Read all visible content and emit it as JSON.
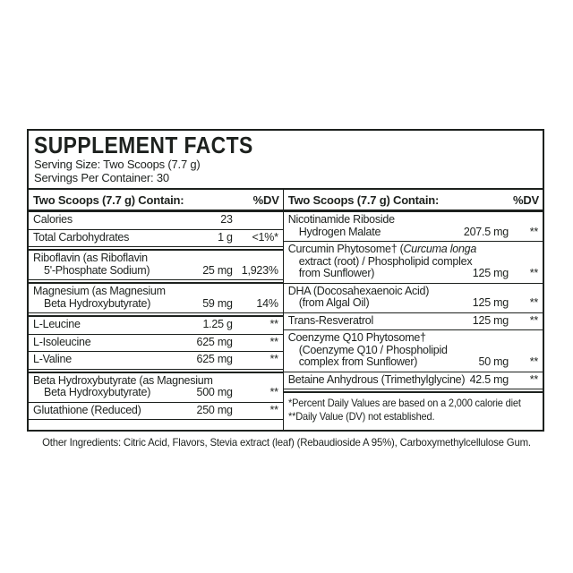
{
  "page": {
    "other_ingredients": "Other Ingredients: Citric Acid, Flavors, Stevia extract (leaf) (Rebaudioside A 95%), Carboxymethylcellulose Gum."
  },
  "panel": {
    "title": "SUPPLEMENT FACTS",
    "serving_size": "Serving Size: Two Scoops (7.7 g)",
    "servings_per_container": "Servings Per Container: 30",
    "text_color": "#1d211e",
    "columns": [
      {
        "header": "Two Scoops (7.7 g) Contain:",
        "dv_header": "%DV",
        "rows": [
          {
            "name_lines": [
              "Calories"
            ],
            "amount": "23",
            "dv": "",
            "rule": "thin"
          },
          {
            "name_lines": [
              "Total Carbohydrates"
            ],
            "amount": "1 g",
            "dv": "<1%*",
            "rule": "double"
          },
          {
            "name_lines": [
              "Riboflavin (as Riboflavin",
              "5'-Phosphate Sodium)"
            ],
            "amount": "25 mg",
            "dv": "1,923%",
            "rule": "double"
          },
          {
            "name_lines": [
              "Magnesium (as Magnesium",
              "Beta Hydroxybutyrate)"
            ],
            "amount": "59 mg",
            "dv": "14%",
            "rule": "double"
          },
          {
            "name_lines": [
              "L-Leucine"
            ],
            "amount": "1.25 g",
            "dv": "**",
            "rule": "thin"
          },
          {
            "name_lines": [
              "L-Isoleucine"
            ],
            "amount": "625 mg",
            "dv": "**",
            "rule": "thin"
          },
          {
            "name_lines": [
              "L-Valine"
            ],
            "amount": "625 mg",
            "dv": "**",
            "rule": "double"
          },
          {
            "name_lines": [
              "Beta Hydroxybutyrate (as Magnesium",
              "Beta Hydroxybutyrate)"
            ],
            "amount": "500 mg",
            "dv": "**",
            "rule": "thin"
          },
          {
            "name_lines": [
              "Glutathione (Reduced)"
            ],
            "amount": "250 mg",
            "dv": "**",
            "rule": "thin"
          }
        ]
      },
      {
        "header": "Two Scoops (7.7 g) Contain:",
        "dv_header": "%DV",
        "rows": [
          {
            "name_lines": [
              "Nicotinamide Riboside",
              "Hydrogen Malate"
            ],
            "amount": "207.5 mg",
            "dv": "**",
            "rule": "thin"
          },
          {
            "name_lines": [
              [
                {
                  "text": "Curcumin Phytosome† ("
                },
                {
                  "text": "Curcuma longa",
                  "italic": true
                }
              ],
              "extract (root) / Phospholipid complex",
              "from Sunflower)"
            ],
            "amount": "125 mg",
            "dv": "**",
            "rule": "thin"
          },
          {
            "name_lines": [
              "DHA (Docosahexaenoic Acid)",
              "(from Algal Oil)"
            ],
            "amount": "125 mg",
            "dv": "**",
            "rule": "thin"
          },
          {
            "name_lines": [
              "Trans-Resveratrol"
            ],
            "amount": "125 mg",
            "dv": "**",
            "rule": "thin"
          },
          {
            "name_lines": [
              "Coenzyme Q10 Phytosome†",
              "(Coenzyme Q10 / Phospholipid",
              "complex from Sunflower)"
            ],
            "amount": "50 mg",
            "dv": "**",
            "rule": "thin"
          },
          {
            "name_lines": [
              "Betaine Anhydrous (Trimethylglycine)"
            ],
            "amount": "42.5 mg",
            "dv": "**",
            "rule": "double"
          }
        ],
        "footnotes": [
          "*Percent Daily Values are based on a 2,000 calorie diet",
          "**Daily Value (DV) not established."
        ]
      }
    ]
  }
}
